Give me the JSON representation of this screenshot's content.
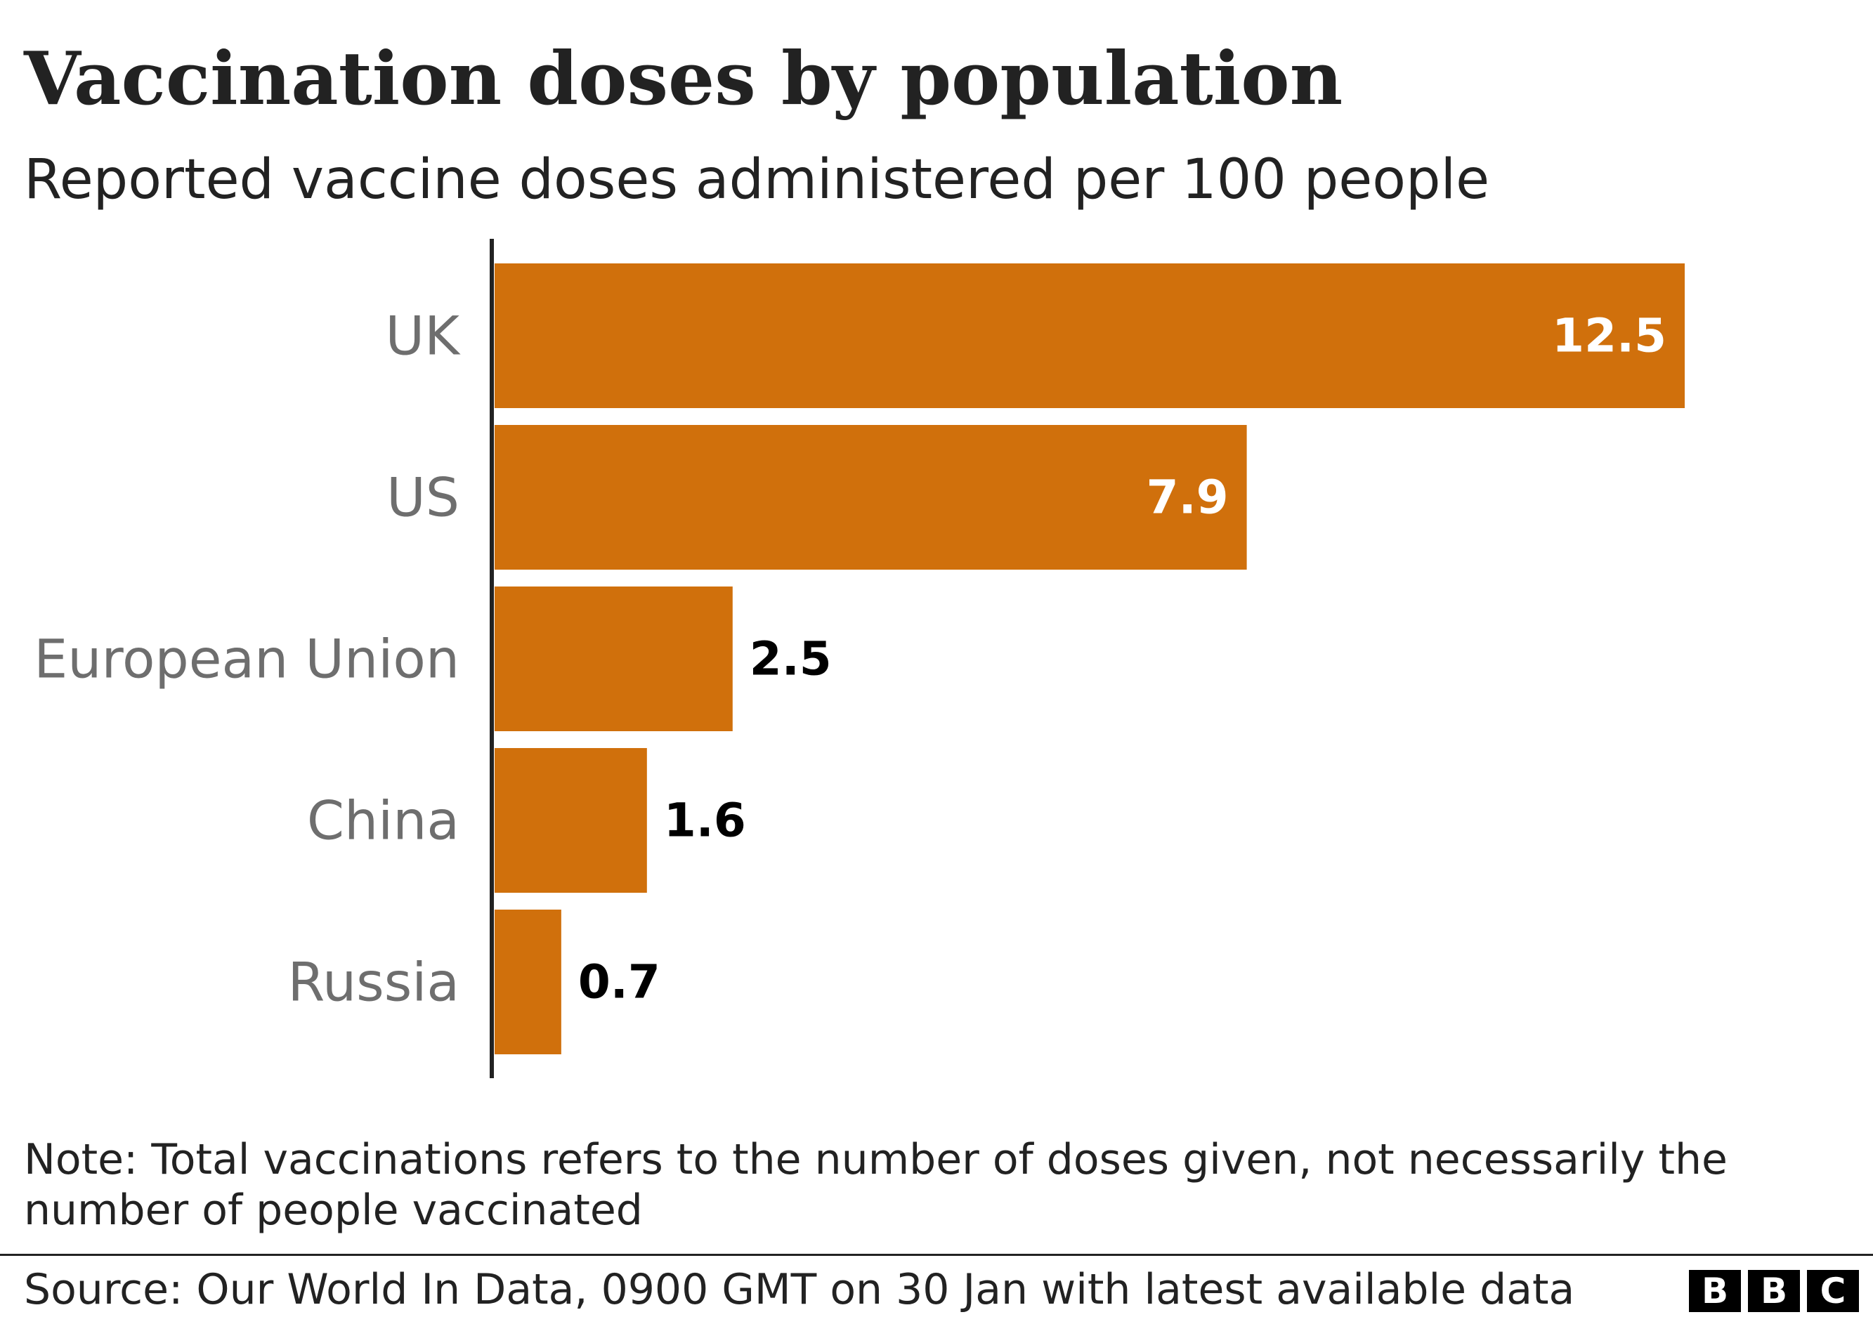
{
  "chart_data": {
    "type": "bar",
    "orientation": "horizontal",
    "title": "Vaccination doses by population",
    "subtitle": "Reported vaccine doses administered per 100 people",
    "categories": [
      "UK",
      "US",
      "European Union",
      "China",
      "Russia"
    ],
    "values": [
      12.5,
      7.9,
      2.5,
      1.6,
      0.7
    ],
    "value_labels": [
      "12.5",
      "7.9",
      "2.5",
      "1.6",
      "0.7"
    ],
    "xlim": [
      0,
      12.5
    ],
    "xlabel": "",
    "ylabel": "",
    "grid": false,
    "colors": {
      "bar": "#d0700c",
      "axis": "#222222",
      "label_inside": "#ffffff",
      "label_outside": "#000000",
      "category_label": "#6e6e6e"
    }
  },
  "note": "Note: Total vaccinations refers to the number of doses given, not necessarily the number of people vaccinated",
  "source": "Source: Our World In Data, 0900 GMT on 30 Jan with latest available data",
  "logo": {
    "letters": [
      "B",
      "B",
      "C"
    ],
    "alt": "BBC"
  }
}
